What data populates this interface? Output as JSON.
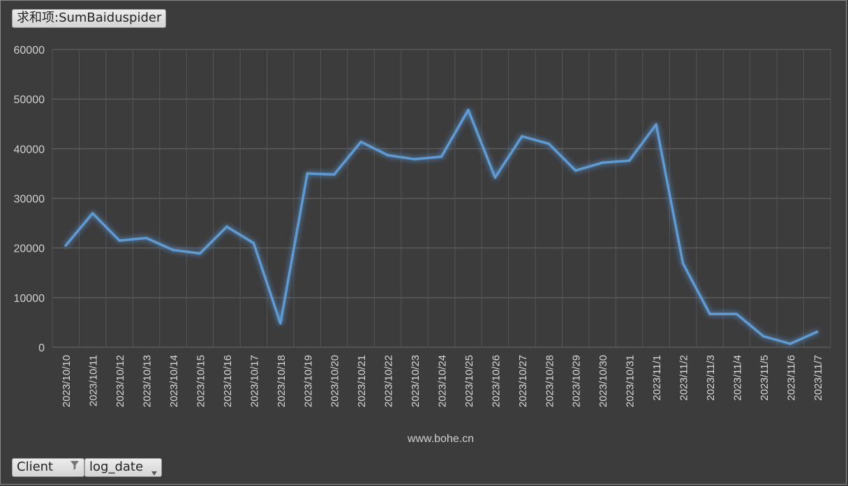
{
  "value_field": {
    "label": "求和项:SumBaiduspider"
  },
  "filters": {
    "client": {
      "label": "Client",
      "icon": "filter-icon"
    },
    "log_date": {
      "label": "log_date",
      "icon": "dropdown-arrow-icon"
    }
  },
  "chart_data": {
    "type": "line",
    "title": "",
    "xlabel": "www.bohe.cn",
    "ylabel": "",
    "ylim": [
      0,
      60000
    ],
    "yticks": [
      0,
      10000,
      20000,
      30000,
      40000,
      50000,
      60000
    ],
    "grid": true,
    "line_color": "#5b9bd5",
    "categories": [
      "2023/10/10",
      "2023/10/11",
      "2023/10/12",
      "2023/10/13",
      "2023/10/14",
      "2023/10/15",
      "2023/10/16",
      "2023/10/17",
      "2023/10/18",
      "2023/10/19",
      "2023/10/20",
      "2023/10/21",
      "2023/10/22",
      "2023/10/23",
      "2023/10/24",
      "2023/10/25",
      "2023/10/26",
      "2023/10/27",
      "2023/10/28",
      "2023/10/29",
      "2023/10/30",
      "2023/10/31",
      "2023/11/1",
      "2023/11/2",
      "2023/11/3",
      "2023/11/4",
      "2023/11/5",
      "2023/11/6",
      "2023/11/7"
    ],
    "series": [
      {
        "values": [
          20500,
          27000,
          21500,
          22000,
          19600,
          18900,
          24300,
          21000,
          4800,
          35000,
          34800,
          41400,
          38700,
          37900,
          38400,
          47800,
          34200,
          42500,
          41000,
          35600,
          37200,
          37600,
          44900,
          16900,
          6700,
          6700,
          2200,
          700,
          3100
        ]
      }
    ]
  }
}
